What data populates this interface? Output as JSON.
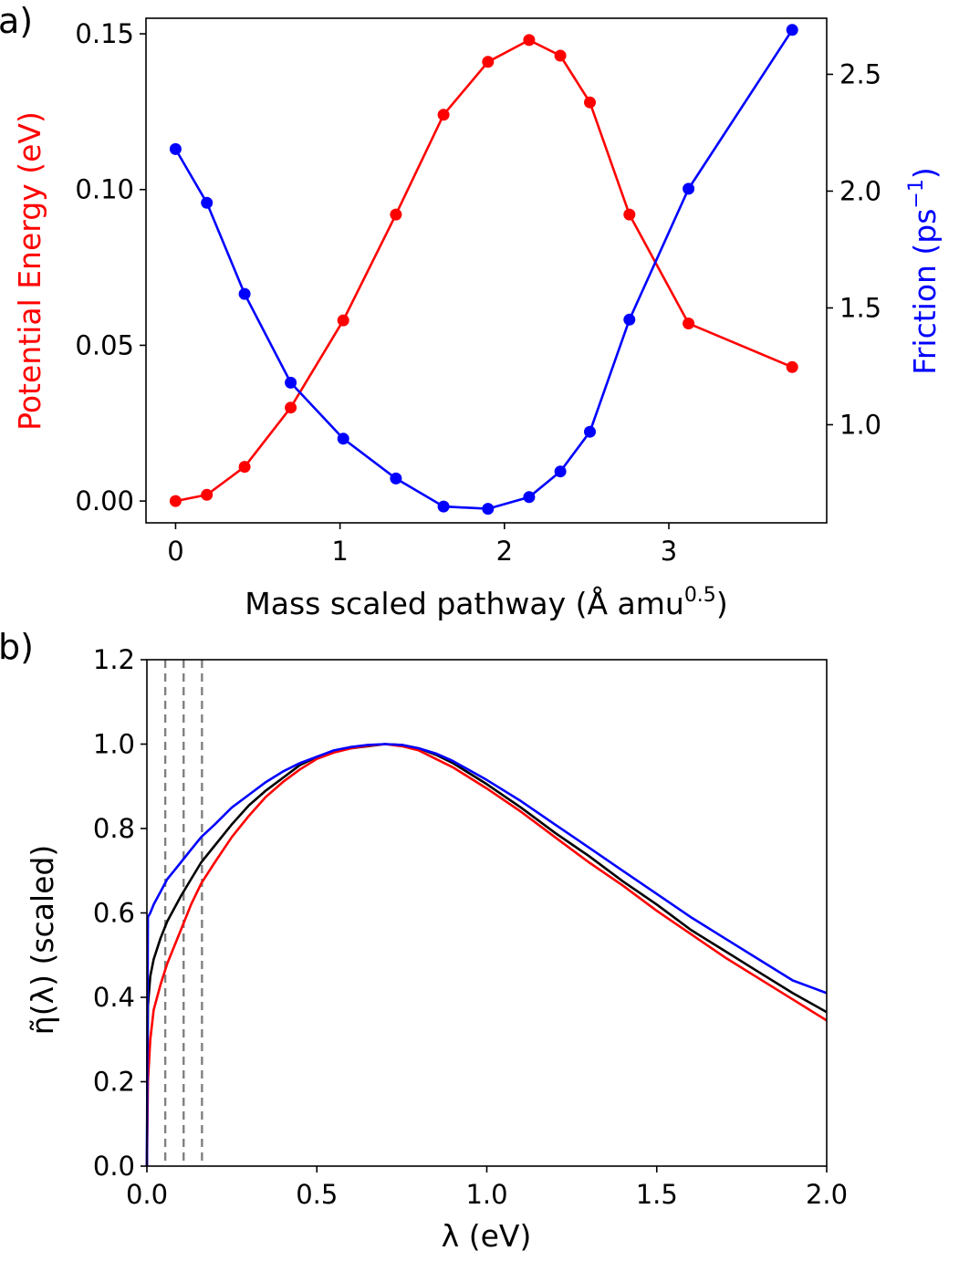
{
  "chart_data": [
    {
      "panel": "a)",
      "type": "line",
      "xlabel": "Mass scaled pathway (Å amu",
      "xlabel_sup": "0.5",
      "xlabel_close": ")",
      "ylabel": "Potential Energy (eV)",
      "ylabel_right": "Friction (ps",
      "ylabel_right_sup": "−1",
      "ylabel_right_close": ")",
      "xlim": [
        -0.18,
        3.96
      ],
      "ylim": [
        -0.007,
        0.155
      ],
      "ylim_right": [
        0.58,
        2.74
      ],
      "xticks": [
        "0",
        "1",
        "2",
        "3"
      ],
      "yticks": [
        "0.00",
        "0.05",
        "0.10",
        "0.15"
      ],
      "yticks_right": [
        "1.0",
        "1.5",
        "2.0",
        "2.5"
      ],
      "grid": false,
      "colors": {
        "left": "#ff0000",
        "right": "#0000ff"
      },
      "series": [
        {
          "axis": "left",
          "color": "#ff0000",
          "x": [
            0.0,
            0.19,
            0.42,
            0.7,
            1.02,
            1.34,
            1.63,
            1.9,
            2.15,
            2.34,
            2.52,
            2.76,
            3.12,
            3.75
          ],
          "y": [
            0.0,
            0.002,
            0.011,
            0.03,
            0.058,
            0.092,
            0.124,
            0.141,
            0.148,
            0.143,
            0.128,
            0.092,
            0.057,
            0.043
          ]
        },
        {
          "axis": "right",
          "color": "#0000ff",
          "x": [
            0.0,
            0.19,
            0.42,
            0.7,
            1.02,
            1.34,
            1.63,
            1.9,
            2.15,
            2.34,
            2.52,
            2.76,
            3.12,
            3.75
          ],
          "y": [
            2.18,
            1.95,
            1.56,
            1.18,
            0.94,
            0.77,
            0.65,
            0.64,
            0.69,
            0.8,
            0.97,
            1.45,
            2.01,
            2.69
          ]
        }
      ]
    },
    {
      "panel": "b)",
      "type": "line",
      "xlabel": "λ (eV)",
      "ylabel": "η̃(λ) (scaled)",
      "xlim": [
        0.0,
        2.0
      ],
      "ylim": [
        0.0,
        1.2
      ],
      "xticks": [
        "0.0",
        "0.5",
        "1.0",
        "1.5",
        "2.0"
      ],
      "yticks": [
        "0.0",
        "0.2",
        "0.4",
        "0.6",
        "0.8",
        "1.0",
        "1.2"
      ],
      "grid": false,
      "vlines": [
        0.054,
        0.108,
        0.162
      ],
      "vline_color": "#808080",
      "series": [
        {
          "color": "#000000",
          "x": [
            0.0,
            0.003,
            0.01,
            0.02,
            0.04,
            0.06,
            0.08,
            0.1,
            0.13,
            0.16,
            0.2,
            0.25,
            0.3,
            0.35,
            0.4,
            0.45,
            0.5,
            0.55,
            0.6,
            0.65,
            0.7,
            0.75,
            0.8,
            0.85,
            0.9,
            1.0,
            1.1,
            1.2,
            1.3,
            1.4,
            1.5,
            1.6,
            1.7,
            1.8,
            1.9,
            2.0
          ],
          "y": [
            0.0,
            0.38,
            0.45,
            0.49,
            0.54,
            0.58,
            0.61,
            0.64,
            0.68,
            0.72,
            0.76,
            0.81,
            0.855,
            0.89,
            0.92,
            0.95,
            0.97,
            0.983,
            0.99,
            0.995,
            1.0,
            0.998,
            0.99,
            0.975,
            0.955,
            0.905,
            0.85,
            0.79,
            0.735,
            0.675,
            0.62,
            0.56,
            0.51,
            0.46,
            0.41,
            0.365
          ]
        },
        {
          "color": "#ff0000",
          "x": [
            0.0,
            0.003,
            0.01,
            0.02,
            0.04,
            0.06,
            0.08,
            0.1,
            0.13,
            0.16,
            0.2,
            0.25,
            0.3,
            0.35,
            0.4,
            0.45,
            0.5,
            0.55,
            0.6,
            0.65,
            0.7,
            0.75,
            0.8,
            0.85,
            0.9,
            1.0,
            1.1,
            1.2,
            1.3,
            1.4,
            1.5,
            1.6,
            1.7,
            1.8,
            1.9,
            2.0
          ],
          "y": [
            0.0,
            0.2,
            0.3,
            0.37,
            0.43,
            0.48,
            0.52,
            0.56,
            0.62,
            0.67,
            0.72,
            0.78,
            0.83,
            0.875,
            0.91,
            0.94,
            0.965,
            0.98,
            0.99,
            0.996,
            1.0,
            0.995,
            0.985,
            0.965,
            0.945,
            0.895,
            0.84,
            0.78,
            0.72,
            0.665,
            0.605,
            0.55,
            0.495,
            0.445,
            0.395,
            0.345
          ]
        },
        {
          "color": "#0000ff",
          "x": [
            0.0,
            0.003,
            0.01,
            0.02,
            0.04,
            0.06,
            0.08,
            0.1,
            0.13,
            0.16,
            0.2,
            0.25,
            0.3,
            0.35,
            0.4,
            0.45,
            0.5,
            0.55,
            0.6,
            0.65,
            0.7,
            0.75,
            0.8,
            0.85,
            0.9,
            1.0,
            1.1,
            1.2,
            1.3,
            1.4,
            1.5,
            1.6,
            1.7,
            1.8,
            1.9,
            2.0
          ],
          "y": [
            0.0,
            0.59,
            0.6,
            0.62,
            0.65,
            0.68,
            0.7,
            0.72,
            0.75,
            0.78,
            0.81,
            0.85,
            0.88,
            0.91,
            0.935,
            0.955,
            0.97,
            0.985,
            0.993,
            0.998,
            1.0,
            0.998,
            0.99,
            0.978,
            0.96,
            0.915,
            0.865,
            0.81,
            0.755,
            0.7,
            0.645,
            0.59,
            0.54,
            0.49,
            0.44,
            0.41
          ]
        }
      ]
    }
  ]
}
